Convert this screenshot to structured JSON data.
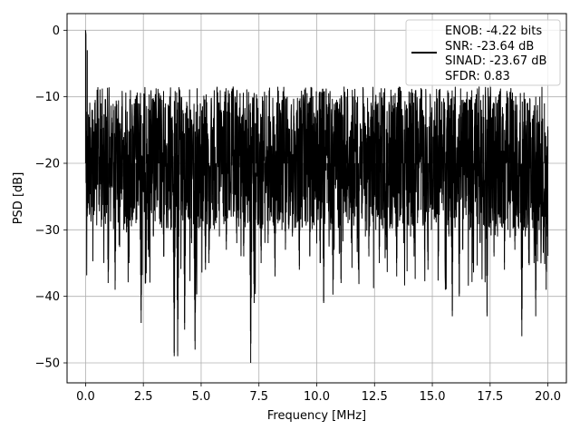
{
  "chart_data": {
    "type": "line",
    "title": "",
    "xlabel": "Frequency [MHz]",
    "ylabel": "PSD [dB]",
    "xlim": [
      -0.8,
      20.8
    ],
    "ylim": [
      -53,
      2.5
    ],
    "x_ticks": [
      0.0,
      2.5,
      5.0,
      7.5,
      10.0,
      12.5,
      15.0,
      17.5,
      20.0
    ],
    "x_tick_labels": [
      "0.0",
      "2.5",
      "5.0",
      "7.5",
      "10.0",
      "12.5",
      "15.0",
      "17.5",
      "20.0"
    ],
    "y_ticks": [
      0,
      -10,
      -20,
      -30,
      -40,
      -50
    ],
    "y_tick_labels": [
      "0",
      "−10",
      "−20",
      "−30",
      "−40",
      "−50"
    ],
    "grid": true,
    "legend_position": "top-right",
    "legend_lines": [
      "ENOB: -4.22 bits",
      "SNR: -23.64 dB",
      "SINAD: -23.67 dB",
      "SFDR: 0.83"
    ],
    "series": [
      {
        "color": "#000000",
        "x_start": 0.0,
        "x_end": 20.0,
        "spectrum_description": "noise-like PSD with peak at 0 dB near 0 MHz, floor mostly between -30 and -8 dB",
        "values": [
          0,
          -3,
          -16,
          -22,
          -12,
          -27,
          -14,
          -20,
          -25,
          -11,
          -18,
          -28,
          -13,
          -38,
          -16,
          -23,
          -12,
          -39,
          -19,
          -26,
          -14,
          -22,
          -30,
          -12,
          -21,
          -35,
          -15,
          -24,
          -11,
          -29,
          -18,
          -20,
          -44,
          -14,
          -26,
          -17,
          -33,
          -12,
          -22,
          -31,
          -16,
          -24,
          -13,
          -28,
          -19,
          -34,
          -11,
          -25,
          -17,
          -30,
          -15,
          -49,
          -14,
          -49,
          -21,
          -27,
          -12,
          -45,
          -18,
          -25,
          -13,
          -32,
          -20,
          -48,
          -16,
          -24,
          -11,
          -30,
          -18,
          -36,
          -14,
          -35,
          -22,
          -27,
          -13,
          -29,
          -17,
          -31,
          -12,
          -26,
          -19,
          -33,
          -15,
          -24,
          -10,
          -28,
          -18,
          -32,
          -13,
          -27,
          -20,
          -34,
          -15,
          -25,
          -12,
          -50,
          -19,
          -41,
          -14,
          -29,
          -17,
          -35,
          -11,
          -26,
          -18,
          -32,
          -13,
          -28,
          -20,
          -37,
          -14,
          -24,
          -12,
          -30,
          -17,
          -33,
          -10,
          -26,
          -19,
          -31,
          -14,
          -28,
          -21,
          -36,
          -12,
          -25,
          -16,
          -29,
          -11,
          -34,
          -18,
          -27,
          -13,
          -32,
          -20,
          -35,
          -12,
          -41,
          -15,
          -26,
          -11,
          -30,
          -18,
          -33,
          -14,
          -27,
          -20,
          -38,
          -13,
          -25,
          -10,
          -29,
          -17,
          -32,
          -12,
          -28,
          -19,
          -36,
          -14,
          -24,
          -11,
          -31,
          -18,
          -34,
          -13,
          -26,
          -20,
          -30,
          -12,
          -35,
          -16,
          -27,
          -10,
          -33,
          -17,
          -29,
          -13,
          -25,
          -19,
          -37,
          -11,
          -28,
          -16,
          -32,
          -12,
          -26,
          -18,
          -31,
          -14,
          -34,
          -9,
          -29,
          -17,
          -27,
          -12,
          -33,
          -19,
          -36,
          -13,
          -30,
          -16,
          -28,
          -11,
          -34,
          -17,
          -26,
          -14,
          -39,
          -12,
          -31,
          -18,
          -43,
          -10,
          -27,
          -16,
          -40,
          -13,
          -33,
          -19,
          -25,
          -12,
          -30,
          -17,
          -35,
          -11,
          -28,
          -15,
          -32,
          -13,
          -26,
          -18,
          -43,
          -12,
          -29,
          -16,
          -34,
          -10,
          -31,
          -19,
          -27,
          -13,
          -36,
          -11,
          -30,
          -17,
          -24,
          -13,
          -33,
          -15,
          -28,
          -12,
          -46,
          -18,
          -31,
          -11,
          -35,
          -16,
          -25,
          -14,
          -43,
          -12,
          -30,
          -17,
          -28,
          -11,
          -39,
          -15
        ]
      }
    ]
  }
}
